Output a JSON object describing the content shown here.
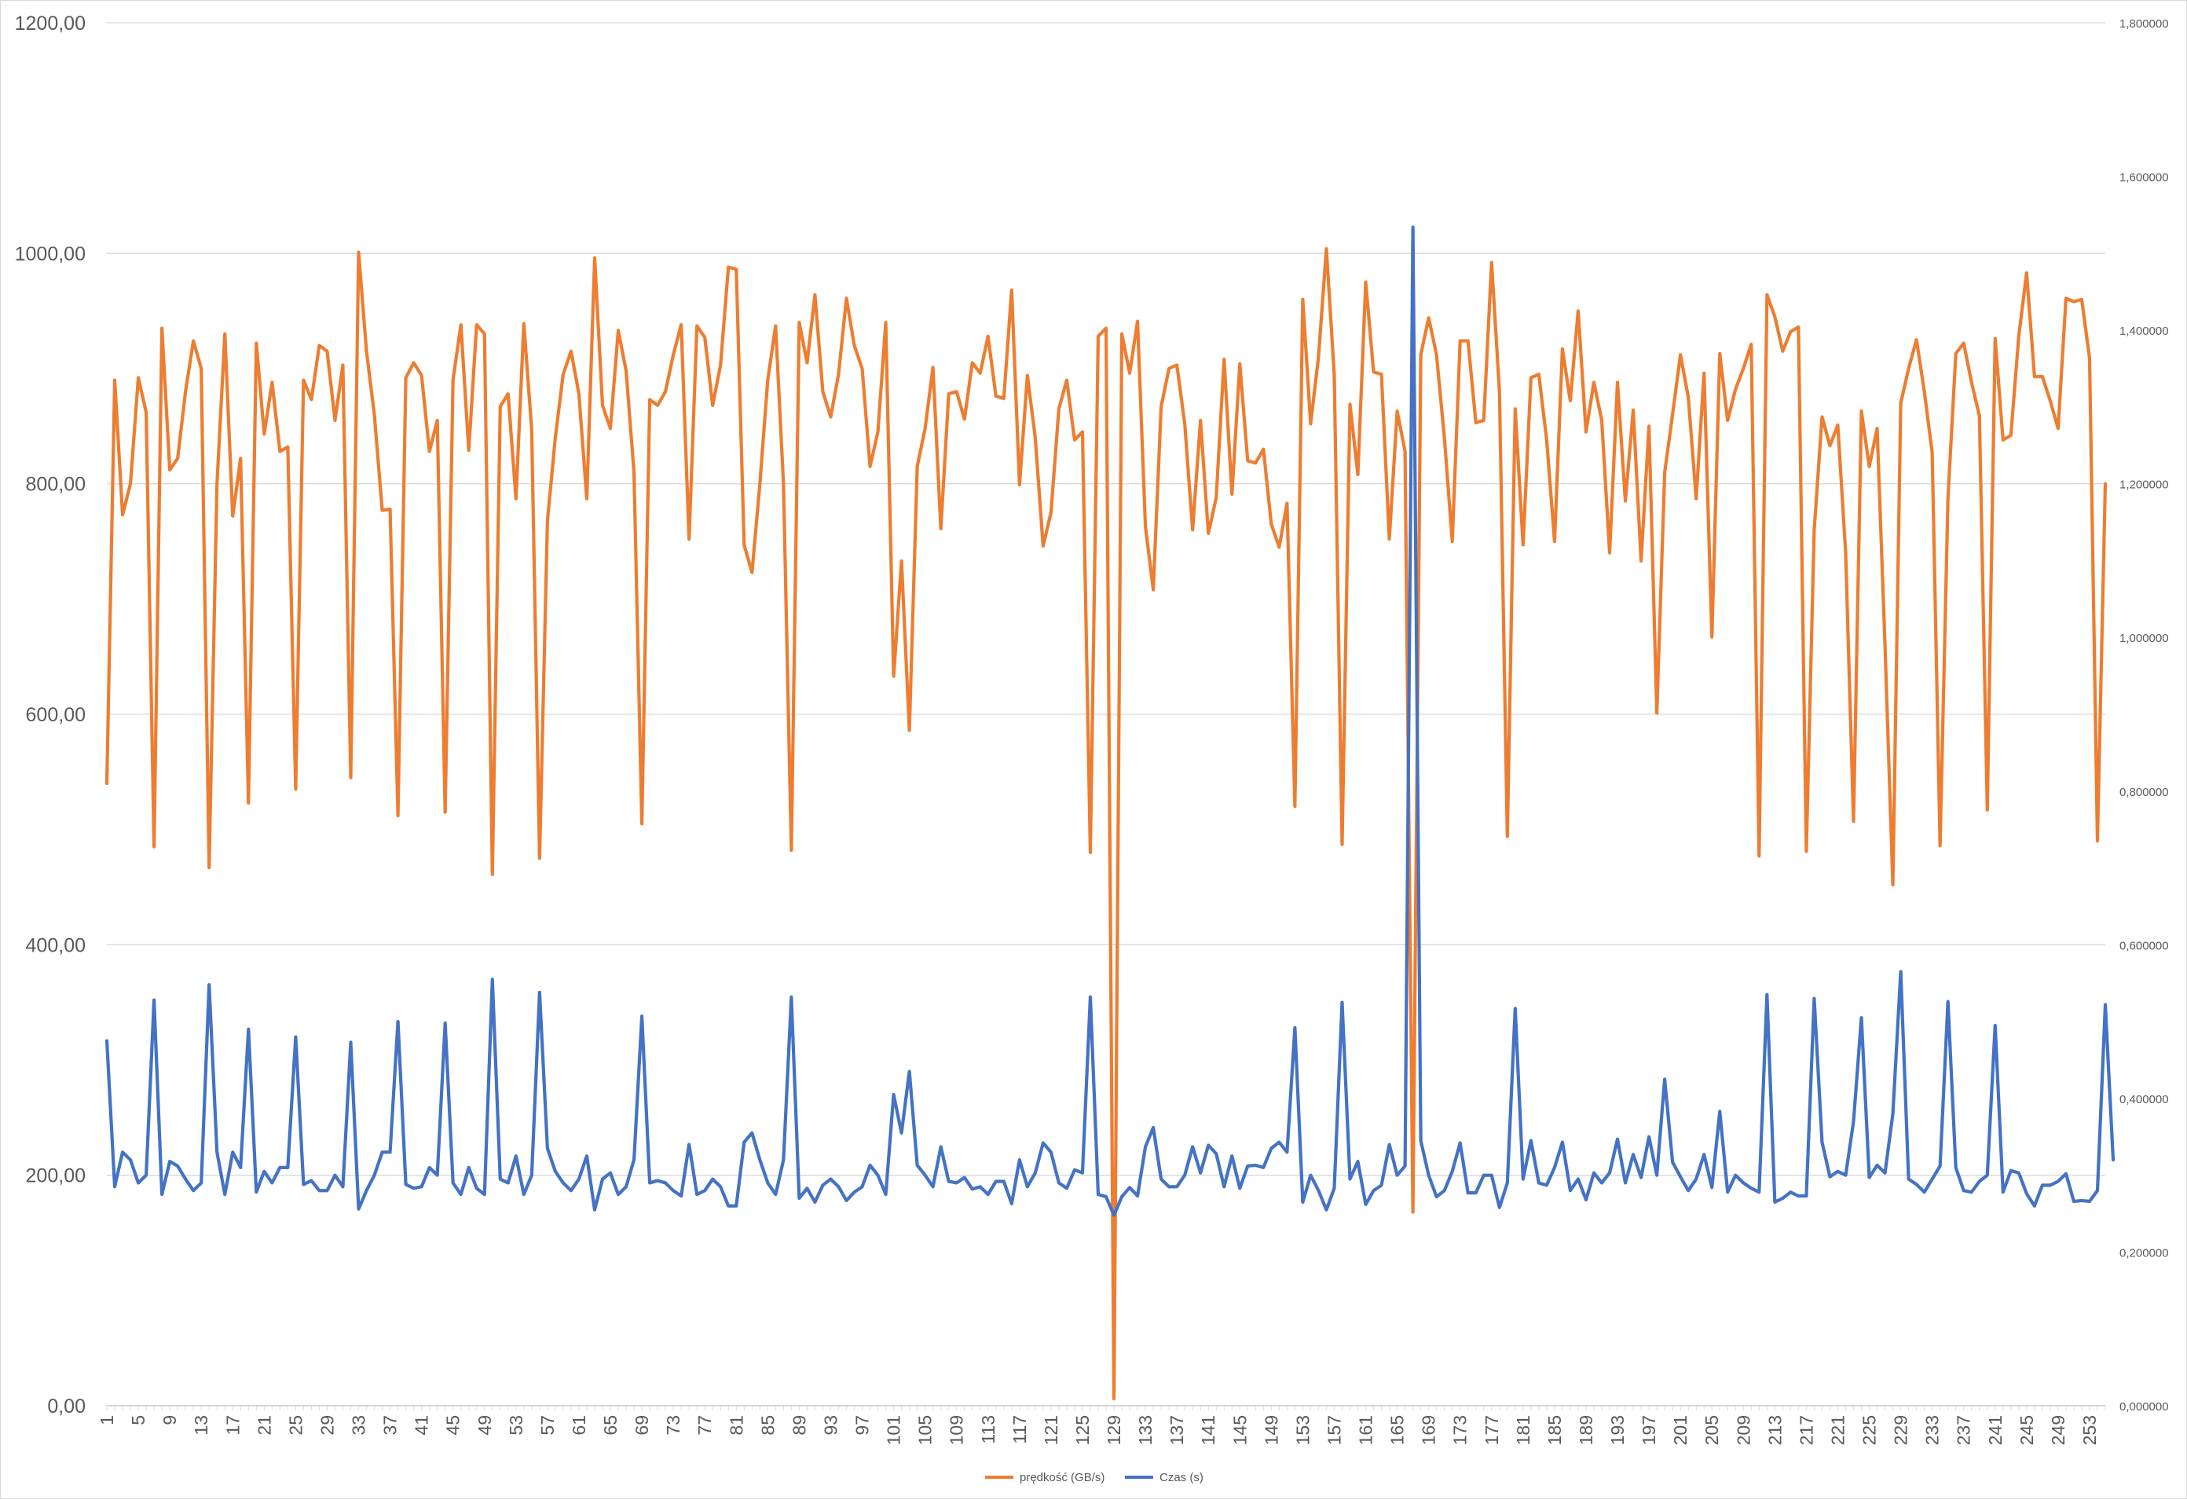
{
  "chart_data": {
    "type": "line",
    "title": "",
    "xlabel": "",
    "ylabel": "",
    "y2label": "",
    "x": {
      "start": 1,
      "end": 255
    },
    "x_tick_labels": [
      1,
      5,
      9,
      13,
      17,
      21,
      25,
      29,
      33,
      37,
      41,
      45,
      49,
      53,
      57,
      61,
      65,
      69,
      73,
      77,
      81,
      85,
      89,
      93,
      97,
      101,
      105,
      109,
      113,
      117,
      121,
      125,
      129,
      133,
      137,
      141,
      145,
      149,
      153,
      157,
      161,
      165,
      169,
      173,
      177,
      181,
      185,
      189,
      193,
      197,
      201,
      205,
      209,
      213,
      217,
      221,
      225,
      229,
      233,
      237,
      241,
      245,
      249,
      253
    ],
    "y_left": {
      "min": 0,
      "max": 1200,
      "ticks": [
        "0,00",
        "200,00",
        "400,00",
        "600,00",
        "800,00",
        "1000,00",
        "1200,00"
      ]
    },
    "y_right": {
      "min": 0,
      "max": 1.8,
      "ticks": [
        "0,000000",
        "0,200000",
        "0,400000",
        "0,600000",
        "0,800000",
        "1,000000",
        "1,200000",
        "1,400000",
        "1,600000",
        "1,800000"
      ]
    },
    "grid": true,
    "legend_position": "bottom",
    "series": [
      {
        "name": "prędkość (GB/s)",
        "axis": "left",
        "color": "#ED7D31",
        "values": [
          540,
          890,
          773,
          800,
          892,
          862,
          485,
          935,
          812,
          822,
          880,
          924,
          900,
          467,
          800,
          930,
          772,
          822,
          523,
          922,
          843,
          888,
          828,
          832,
          535,
          890,
          873,
          920,
          915,
          855,
          903,
          545,
          1001,
          915,
          860,
          777,
          778,
          512,
          892,
          905,
          894,
          828,
          855,
          515,
          890,
          938,
          829,
          938,
          930,
          461,
          867,
          878,
          787,
          939,
          847,
          475,
          768,
          840,
          895,
          915,
          878,
          787,
          996,
          868,
          848,
          933,
          898,
          810,
          505,
          873,
          868,
          880,
          912,
          938,
          752,
          937,
          927,
          868,
          903,
          988,
          986,
          747,
          723,
          800,
          890,
          937,
          800,
          482,
          940,
          905,
          964,
          880,
          858,
          895,
          961,
          920,
          900,
          815,
          845,
          940,
          633,
          733,
          586,
          815,
          848,
          901,
          761,
          878,
          880,
          856,
          905,
          896,
          928,
          876,
          874,
          968,
          799,
          894,
          840,
          746,
          775,
          865,
          890,
          838,
          845,
          480,
          928,
          935,
          6,
          930,
          896,
          941,
          763,
          708,
          867,
          900,
          903,
          852,
          760,
          855,
          757,
          788,
          908,
          791,
          904,
          820,
          818,
          830,
          765,
          745,
          783,
          520,
          960,
          852,
          910,
          1004,
          895,
          487,
          869,
          808,
          975,
          897,
          895,
          752,
          863,
          828,
          168,
          912,
          944,
          912,
          840,
          750,
          924,
          924,
          853,
          855,
          992,
          880,
          494,
          865,
          747,
          892,
          895,
          838,
          750,
          917,
          872,
          950,
          845,
          888,
          855,
          740,
          888,
          785,
          864,
          733,
          850,
          601,
          810,
          860,
          912,
          875,
          787,
          896,
          667,
          913,
          855,
          882,
          900,
          921,
          477,
          964,
          945,
          915,
          932,
          936,
          481,
          760,
          858,
          833,
          851,
          740,
          507,
          863,
          815,
          848,
          660,
          452,
          870,
          900,
          925,
          880,
          827,
          486,
          787,
          913,
          922,
          888,
          859,
          517,
          926,
          838,
          842,
          928,
          983,
          893,
          893,
          872,
          848,
          961,
          958,
          960,
          909,
          490,
          800
        ]
      },
      {
        "name": "Czas (s)",
        "axis": "right",
        "color": "#4472C4",
        "values": [
          0.475,
          0.285,
          0.33,
          0.32,
          0.29,
          0.3,
          0.528,
          0.275,
          0.318,
          0.312,
          0.295,
          0.28,
          0.29,
          0.548,
          0.33,
          0.275,
          0.33,
          0.31,
          0.49,
          0.278,
          0.305,
          0.29,
          0.31,
          0.31,
          0.48,
          0.288,
          0.293,
          0.28,
          0.28,
          0.3,
          0.285,
          0.473,
          0.256,
          0.28,
          0.3,
          0.33,
          0.33,
          0.5,
          0.288,
          0.283,
          0.285,
          0.31,
          0.3,
          0.498,
          0.29,
          0.275,
          0.31,
          0.283,
          0.275,
          0.555,
          0.295,
          0.29,
          0.325,
          0.275,
          0.3,
          0.538,
          0.335,
          0.305,
          0.29,
          0.28,
          0.295,
          0.325,
          0.255,
          0.295,
          0.303,
          0.275,
          0.285,
          0.32,
          0.507,
          0.29,
          0.293,
          0.29,
          0.28,
          0.273,
          0.34,
          0.275,
          0.28,
          0.295,
          0.285,
          0.26,
          0.26,
          0.343,
          0.355,
          0.32,
          0.29,
          0.275,
          0.32,
          0.532,
          0.27,
          0.283,
          0.265,
          0.287,
          0.295,
          0.285,
          0.267,
          0.278,
          0.285,
          0.313,
          0.3,
          0.275,
          0.405,
          0.355,
          0.435,
          0.313,
          0.3,
          0.285,
          0.337,
          0.292,
          0.29,
          0.297,
          0.282,
          0.285,
          0.275,
          0.292,
          0.292,
          0.263,
          0.32,
          0.285,
          0.303,
          0.342,
          0.33,
          0.29,
          0.283,
          0.307,
          0.303,
          0.532,
          0.275,
          0.272,
          0.248,
          0.272,
          0.284,
          0.273,
          0.337,
          0.362,
          0.295,
          0.285,
          0.285,
          0.3,
          0.337,
          0.303,
          0.339,
          0.328,
          0.285,
          0.325,
          0.283,
          0.312,
          0.313,
          0.31,
          0.335,
          0.343,
          0.33,
          0.492,
          0.265,
          0.3,
          0.28,
          0.255,
          0.283,
          0.525,
          0.295,
          0.318,
          0.262,
          0.28,
          0.287,
          0.34,
          0.3,
          0.312,
          1.534,
          0.345,
          0.3,
          0.272,
          0.28,
          0.305,
          0.342,
          0.277,
          0.277,
          0.3,
          0.3,
          0.258,
          0.29,
          0.517,
          0.295,
          0.345,
          0.29,
          0.287,
          0.31,
          0.343,
          0.28,
          0.295,
          0.268,
          0.303,
          0.29,
          0.303,
          0.347,
          0.29,
          0.327,
          0.297,
          0.35,
          0.3,
          0.425,
          0.317,
          0.298,
          0.28,
          0.295,
          0.327,
          0.284,
          0.383,
          0.278,
          0.3,
          0.29,
          0.283,
          0.278,
          0.535,
          0.265,
          0.27,
          0.278,
          0.273,
          0.273,
          0.53,
          0.343,
          0.298,
          0.305,
          0.3,
          0.37,
          0.505,
          0.297,
          0.313,
          0.303,
          0.38,
          0.565,
          0.295,
          0.288,
          0.278,
          0.295,
          0.312,
          0.526,
          0.31,
          0.28,
          0.278,
          0.292,
          0.3,
          0.495,
          0.278,
          0.306,
          0.303,
          0.276,
          0.26,
          0.287,
          0.287,
          0.292,
          0.302,
          0.266,
          0.267,
          0.266,
          0.28,
          0.522,
          0.32
        ]
      }
    ]
  }
}
